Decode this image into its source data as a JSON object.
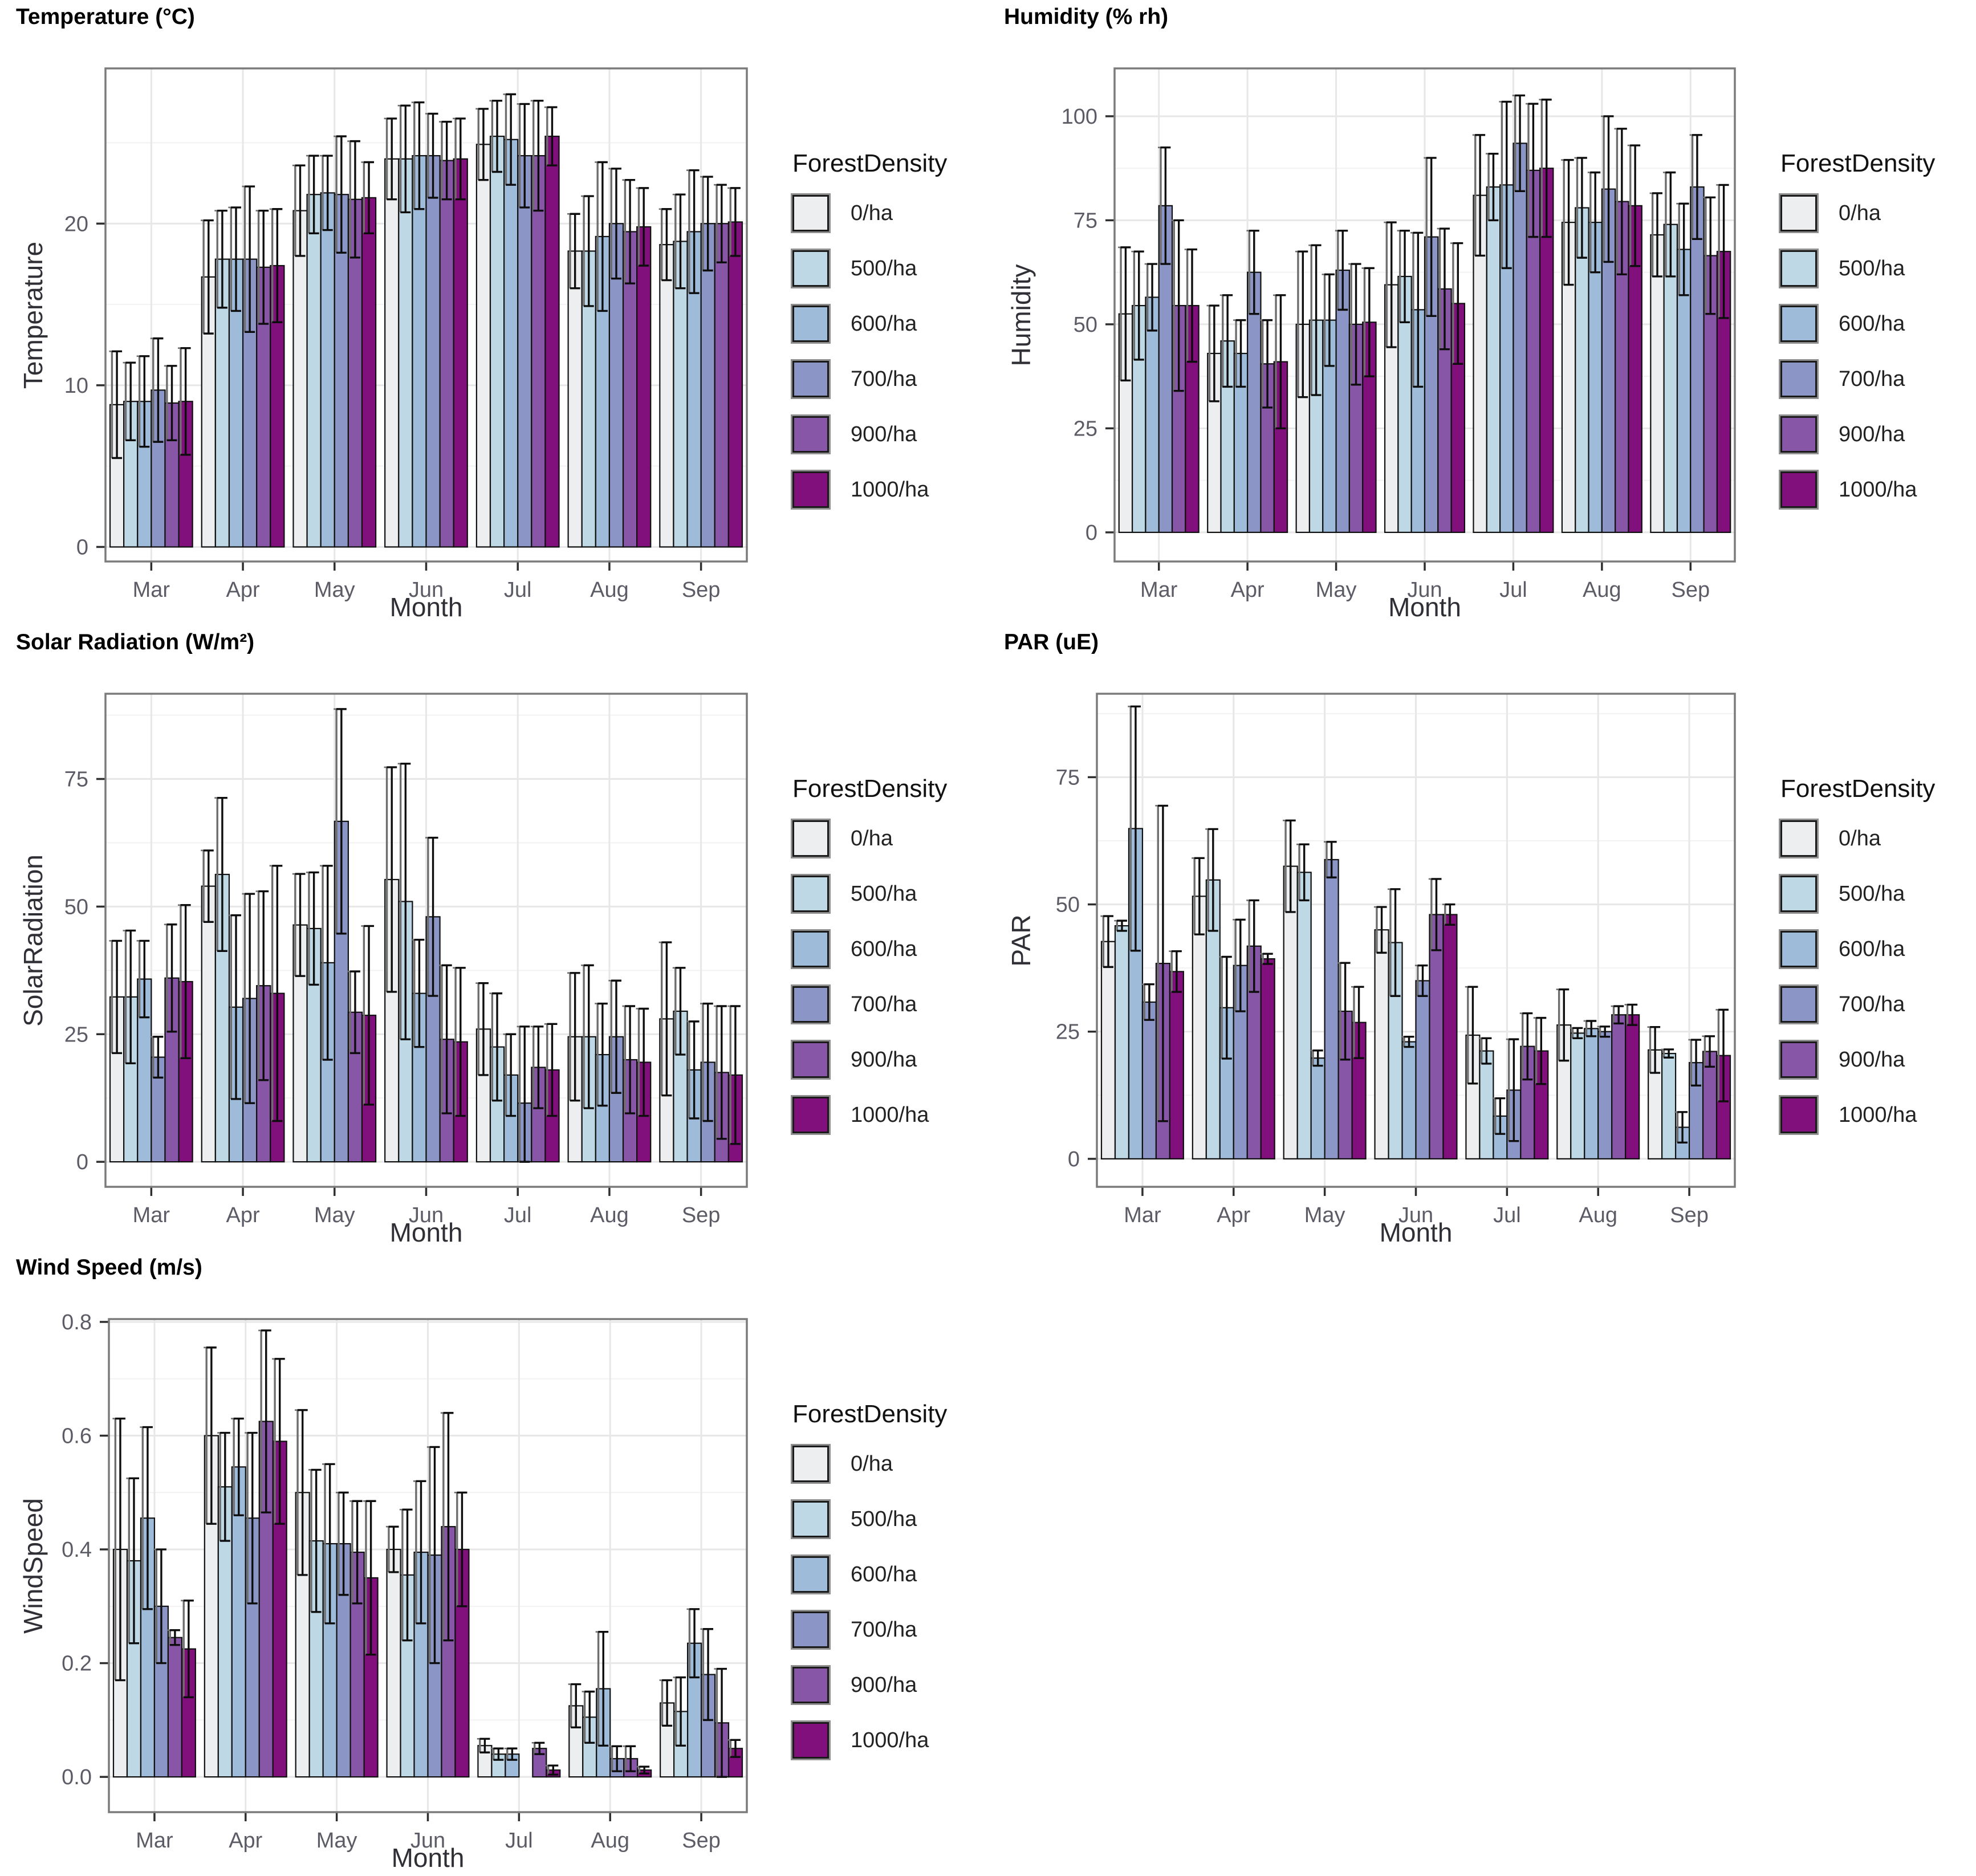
{
  "legend": {
    "title": "ForestDensity",
    "items": [
      {
        "label": "0/ha",
        "color": "#ECEEF0"
      },
      {
        "label": "500/ha",
        "color": "#BFD8E6"
      },
      {
        "label": "600/ha",
        "color": "#9EBCDA"
      },
      {
        "label": "700/ha",
        "color": "#8C96C6"
      },
      {
        "label": "900/ha",
        "color": "#8856A7"
      },
      {
        "label": "1000/ha",
        "color": "#810F7C"
      }
    ]
  },
  "chart_data": [
    {
      "id": "temperature",
      "type": "bar",
      "title": "Temperature (°C)",
      "ylabel": "Temperature",
      "xlabel": "Month",
      "categories": [
        "Mar",
        "Apr",
        "May",
        "Jun",
        "Jul",
        "Aug",
        "Sep"
      ],
      "yticks": [
        0,
        10,
        20
      ],
      "ytick_labels": [
        "0",
        "10",
        "20"
      ],
      "yminor": [
        5,
        15,
        25
      ],
      "ylim": [
        -0.9,
        29.6
      ],
      "grid": true,
      "legend_position": "right",
      "series": [
        {
          "name": "0/ha",
          "values": [
            8.8,
            16.7,
            20.8,
            24.0,
            24.9,
            18.3,
            18.7
          ],
          "err": [
            3.3,
            3.5,
            2.8,
            2.5,
            2.2,
            2.3,
            2.2
          ]
        },
        {
          "name": "500/ha",
          "values": [
            9.0,
            17.8,
            21.8,
            24.0,
            25.4,
            18.3,
            18.9
          ],
          "err": [
            2.4,
            3.0,
            2.4,
            3.3,
            2.2,
            3.4,
            2.9
          ]
        },
        {
          "name": "600/ha",
          "values": [
            9.0,
            17.8,
            21.9,
            24.2,
            25.2,
            19.2,
            19.5
          ],
          "err": [
            2.8,
            3.2,
            2.3,
            3.3,
            2.8,
            4.6,
            3.8
          ]
        },
        {
          "name": "700/ha",
          "values": [
            9.7,
            17.8,
            21.8,
            24.2,
            24.2,
            20.0,
            20.0
          ],
          "err": [
            3.2,
            4.5,
            3.6,
            2.6,
            3.2,
            3.4,
            2.9
          ]
        },
        {
          "name": "900/ha",
          "values": [
            8.9,
            17.3,
            21.5,
            23.9,
            24.2,
            19.5,
            20.0
          ],
          "err": [
            2.3,
            3.5,
            3.6,
            2.4,
            3.4,
            3.2,
            2.4
          ]
        },
        {
          "name": "1000/ha",
          "values": [
            9.0,
            17.4,
            21.6,
            24.0,
            25.4,
            19.8,
            20.1
          ],
          "err": [
            3.3,
            3.5,
            2.2,
            2.5,
            1.8,
            2.4,
            2.1
          ]
        }
      ]
    },
    {
      "id": "humidity",
      "type": "bar",
      "title": "Humidity (% rh)",
      "ylabel": "Humidity",
      "xlabel": "Month",
      "categories": [
        "Mar",
        "Apr",
        "May",
        "Jun",
        "Jul",
        "Aug",
        "Sep"
      ],
      "yticks": [
        0,
        25,
        50,
        75,
        100
      ],
      "ytick_labels": [
        "0",
        "25",
        "50",
        "75",
        "100"
      ],
      "yminor": [
        12.5,
        37.5,
        62.5,
        87.5
      ],
      "ylim": [
        -7,
        111.5
      ],
      "grid": true,
      "legend_position": "right",
      "series": [
        {
          "name": "0/ha",
          "values": [
            52.5,
            43,
            50,
            59.5,
            81,
            74.5,
            71.5
          ],
          "err": [
            16,
            11.5,
            17.5,
            15,
            14.5,
            15,
            10
          ]
        },
        {
          "name": "500/ha",
          "values": [
            54.5,
            46,
            51,
            61.5,
            83,
            78,
            74
          ],
          "err": [
            13,
            11,
            18,
            11,
            8,
            12,
            12.5
          ]
        },
        {
          "name": "600/ha",
          "values": [
            56.5,
            43,
            51,
            53.5,
            83.5,
            74.5,
            68
          ],
          "err": [
            8,
            8,
            11,
            18.5,
            20,
            12,
            11
          ]
        },
        {
          "name": "700/ha",
          "values": [
            78.5,
            62.5,
            63,
            71,
            93.5,
            82.5,
            83
          ],
          "err": [
            14,
            10,
            9.5,
            19,
            11.5,
            17.5,
            12.5
          ]
        },
        {
          "name": "900/ha",
          "values": [
            54.5,
            40.5,
            50,
            58.5,
            87,
            79.5,
            66.5
          ],
          "err": [
            20.5,
            10.5,
            14.5,
            14.5,
            16,
            17.5,
            14
          ]
        },
        {
          "name": "1000/ha",
          "values": [
            54.5,
            41,
            50.5,
            55,
            87.5,
            78.5,
            67.5
          ],
          "err": [
            13.5,
            16,
            13,
            14.5,
            16.5,
            14.5,
            16
          ]
        }
      ]
    },
    {
      "id": "solar-radiation",
      "type": "bar",
      "title": "Solar Radiation (W/m²)",
      "ylabel": "SolarRadiation",
      "xlabel": "Month",
      "categories": [
        "Mar",
        "Apr",
        "May",
        "Jun",
        "Jul",
        "Aug",
        "Sep"
      ],
      "yticks": [
        0,
        25,
        50,
        75
      ],
      "ytick_labels": [
        "0",
        "25",
        "50",
        "75"
      ],
      "yminor": [
        12.5,
        37.5,
        62.5,
        87.5
      ],
      "ylim": [
        -4.9,
        91.7
      ],
      "grid": true,
      "legend_position": "right",
      "series": [
        {
          "name": "0/ha",
          "values": [
            32.3,
            54,
            46.4,
            55.3,
            26,
            24.5,
            28
          ],
          "err": [
            11,
            7,
            10,
            22,
            9,
            12.5,
            15
          ]
        },
        {
          "name": "500/ha",
          "values": [
            32.3,
            56.3,
            45.7,
            51,
            22.5,
            24.5,
            29.5
          ],
          "err": [
            13,
            15,
            11,
            27,
            10.5,
            14,
            8.5
          ]
        },
        {
          "name": "600/ha",
          "values": [
            35.8,
            30.3,
            39,
            33,
            17,
            21,
            18
          ],
          "err": [
            7.5,
            18,
            19,
            10.5,
            8,
            10,
            9.5
          ]
        },
        {
          "name": "700/ha",
          "values": [
            20.5,
            32,
            66.7,
            48,
            11.5,
            24.5,
            19.5
          ],
          "err": [
            4,
            20.5,
            22,
            15.5,
            15,
            11,
            11.5
          ]
        },
        {
          "name": "900/ha",
          "values": [
            36,
            34.5,
            29.3,
            24,
            18.5,
            20,
            17.5
          ],
          "err": [
            10.5,
            18.5,
            8,
            14.5,
            8,
            10.5,
            13
          ]
        },
        {
          "name": "1000/ha",
          "values": [
            35.3,
            33,
            28.7,
            23.5,
            18,
            19.5,
            17
          ],
          "err": [
            15,
            25,
            17.5,
            14.5,
            9,
            10.5,
            13.5
          ]
        }
      ]
    },
    {
      "id": "par",
      "type": "bar",
      "title": "PAR (uE)",
      "ylabel": "PAR",
      "xlabel": "Month",
      "categories": [
        "Mar",
        "Apr",
        "May",
        "Jun",
        "Jul",
        "Aug",
        "Sep"
      ],
      "yticks": [
        0,
        25,
        50,
        75
      ],
      "ytick_labels": [
        "0",
        "25",
        "50",
        "75"
      ],
      "yminor": [
        12.5,
        37.5,
        62.5,
        87.5
      ],
      "ylim": [
        -5.5,
        91.4
      ],
      "grid": true,
      "legend_position": "right",
      "series": [
        {
          "name": "0/ha",
          "values": [
            42.7,
            51.6,
            57.5,
            45,
            24.3,
            26.3,
            21.4
          ],
          "err": [
            5,
            7.5,
            9,
            4.5,
            9.5,
            7,
            4.5
          ]
        },
        {
          "name": "500/ha",
          "values": [
            45.8,
            54.8,
            56.3,
            42.5,
            21.2,
            24.7,
            20.7
          ],
          "err": [
            1,
            10,
            5.5,
            10.5,
            2.5,
            1,
            0.8
          ]
        },
        {
          "name": "600/ha",
          "values": [
            64.9,
            29.7,
            19.8,
            23,
            8.4,
            25.6,
            6.2
          ],
          "err": [
            24,
            10,
            1.5,
            1,
            3.5,
            1.5,
            3
          ]
        },
        {
          "name": "700/ha",
          "values": [
            30.8,
            38,
            58.8,
            35,
            13.5,
            25,
            18.9
          ],
          "err": [
            3.5,
            9,
            3.5,
            3,
            10,
            1,
            4.5
          ]
        },
        {
          "name": "900/ha",
          "values": [
            38.4,
            41.8,
            29,
            48,
            22.1,
            28.3,
            21.1
          ],
          "err": [
            31,
            9,
            9.5,
            7,
            6.5,
            1.7,
            3
          ]
        },
        {
          "name": "1000/ha",
          "values": [
            36.8,
            39.3,
            26.8,
            48,
            21.2,
            28.3,
            20.3
          ],
          "err": [
            4,
            1,
            7,
            2,
            6.5,
            2,
            9
          ]
        }
      ]
    },
    {
      "id": "wind-speed",
      "type": "bar",
      "title": "Wind Speed (m/s)",
      "ylabel": "WindSpeed",
      "xlabel": "Month",
      "categories": [
        "Mar",
        "Apr",
        "May",
        "Jun",
        "Jul",
        "Aug",
        "Sep"
      ],
      "yticks": [
        0,
        0.2,
        0.4,
        0.6,
        0.8
      ],
      "ytick_labels": [
        "0.0",
        "0.2",
        "0.4",
        "0.6",
        "0.8"
      ],
      "yminor": [
        0.1,
        0.3,
        0.5,
        0.7
      ],
      "ylim": [
        -0.062,
        0.805
      ],
      "grid": true,
      "legend_position": "right",
      "series": [
        {
          "name": "0/ha",
          "values": [
            0.4,
            0.6,
            0.5,
            0.4,
            0.055,
            0.125,
            0.13
          ],
          "err": [
            0.23,
            0.155,
            0.145,
            0.04,
            0.012,
            0.038,
            0.04
          ]
        },
        {
          "name": "500/ha",
          "values": [
            0.38,
            0.51,
            0.415,
            0.355,
            0.04,
            0.105,
            0.115
          ],
          "err": [
            0.145,
            0.095,
            0.125,
            0.115,
            0.01,
            0.045,
            0.06
          ]
        },
        {
          "name": "600/ha",
          "values": [
            0.455,
            0.545,
            0.41,
            0.395,
            0.04,
            0.155,
            0.235
          ],
          "err": [
            0.16,
            0.085,
            0.14,
            0.125,
            0.01,
            0.1,
            0.06
          ]
        },
        {
          "name": "700/ha",
          "values": [
            0.3,
            0.455,
            0.41,
            0.39,
            null,
            0.032,
            0.18
          ],
          "err": [
            0.1,
            0.15,
            0.09,
            0.19,
            null,
            0.022,
            0.08
          ]
        },
        {
          "name": "900/ha",
          "values": [
            0.245,
            0.625,
            0.395,
            0.44,
            0.05,
            0.032,
            0.095
          ],
          "err": [
            0.013,
            0.16,
            0.09,
            0.2,
            0.01,
            0.022,
            0.095
          ]
        },
        {
          "name": "1000/ha",
          "values": [
            0.225,
            0.59,
            0.35,
            0.4,
            0.012,
            0.012,
            0.05
          ],
          "err": [
            0.085,
            0.145,
            0.135,
            0.1,
            0.008,
            0.006,
            0.015
          ]
        }
      ]
    }
  ]
}
